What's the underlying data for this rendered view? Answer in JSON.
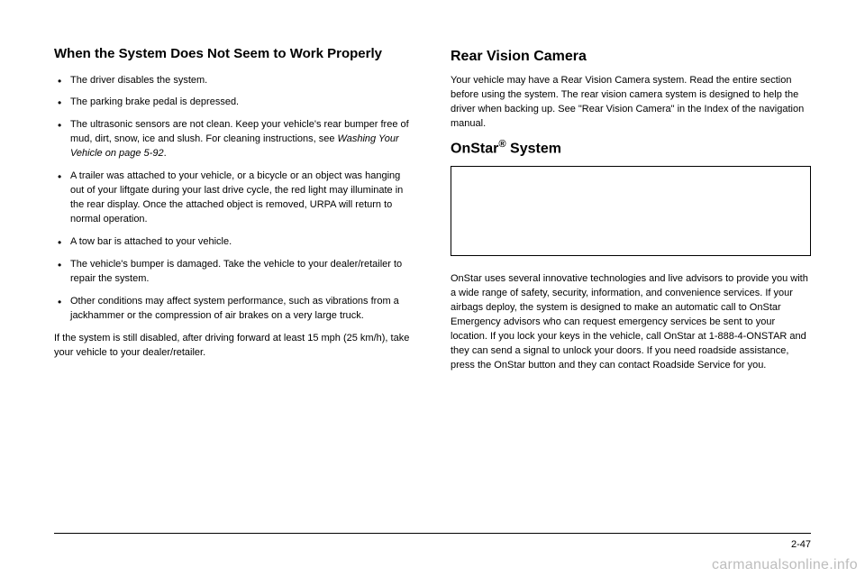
{
  "left": {
    "heading": "When the System Does Not Seem to Work Properly",
    "bullets": [
      "The driver disables the system.",
      "The parking brake pedal is depressed.",
      "The ultrasonic sensors are not clean. Keep your vehicle's rear bumper free of mud, dirt, snow, ice and slush. For cleaning instructions, see Washing Your Vehicle on page 5-92.",
      "A trailer was attached to your vehicle, or a bicycle or an object was hanging out of your liftgate during your last drive cycle, the red light may illuminate in the rear display. Once the attached object is removed, URPA will return to normal operation.",
      "A tow bar is attached to your vehicle.",
      "The vehicle's bumper is damaged. Take the vehicle to your dealer/retailer to repair the system.",
      "Other conditions may affect system performance, such as vibrations from a jackhammer or the compression of air brakes on a very large truck."
    ],
    "closing": "If the system is still disabled, after driving forward at least 15 mph (25 km/h), take your vehicle to your dealer/retailer."
  },
  "right": {
    "heading1": "Rear Vision Camera",
    "para1": "Your vehicle may have a Rear Vision Camera system. Read the entire section before using the system. The rear vision camera system is designed to help the driver when backing up. See \"Rear Vision Camera\" in the Index of the navigation manual.",
    "heading2_prefix": "OnStar",
    "heading2_suffix": " System",
    "para2": "OnStar uses several innovative technologies and live advisors to provide you with a wide range of safety, security, information, and convenience services. If your airbags deploy, the system is designed to make an automatic call to OnStar Emergency advisors who can request emergency services be sent to your location. If you lock your keys in the vehicle, call OnStar at 1-888-4-ONSTAR and they can send a signal to unlock your doors. If you need roadside assistance, press the OnStar button and they can contact Roadside Service for you."
  },
  "page_number": "2-47",
  "watermark": "carmanualsonline.info"
}
